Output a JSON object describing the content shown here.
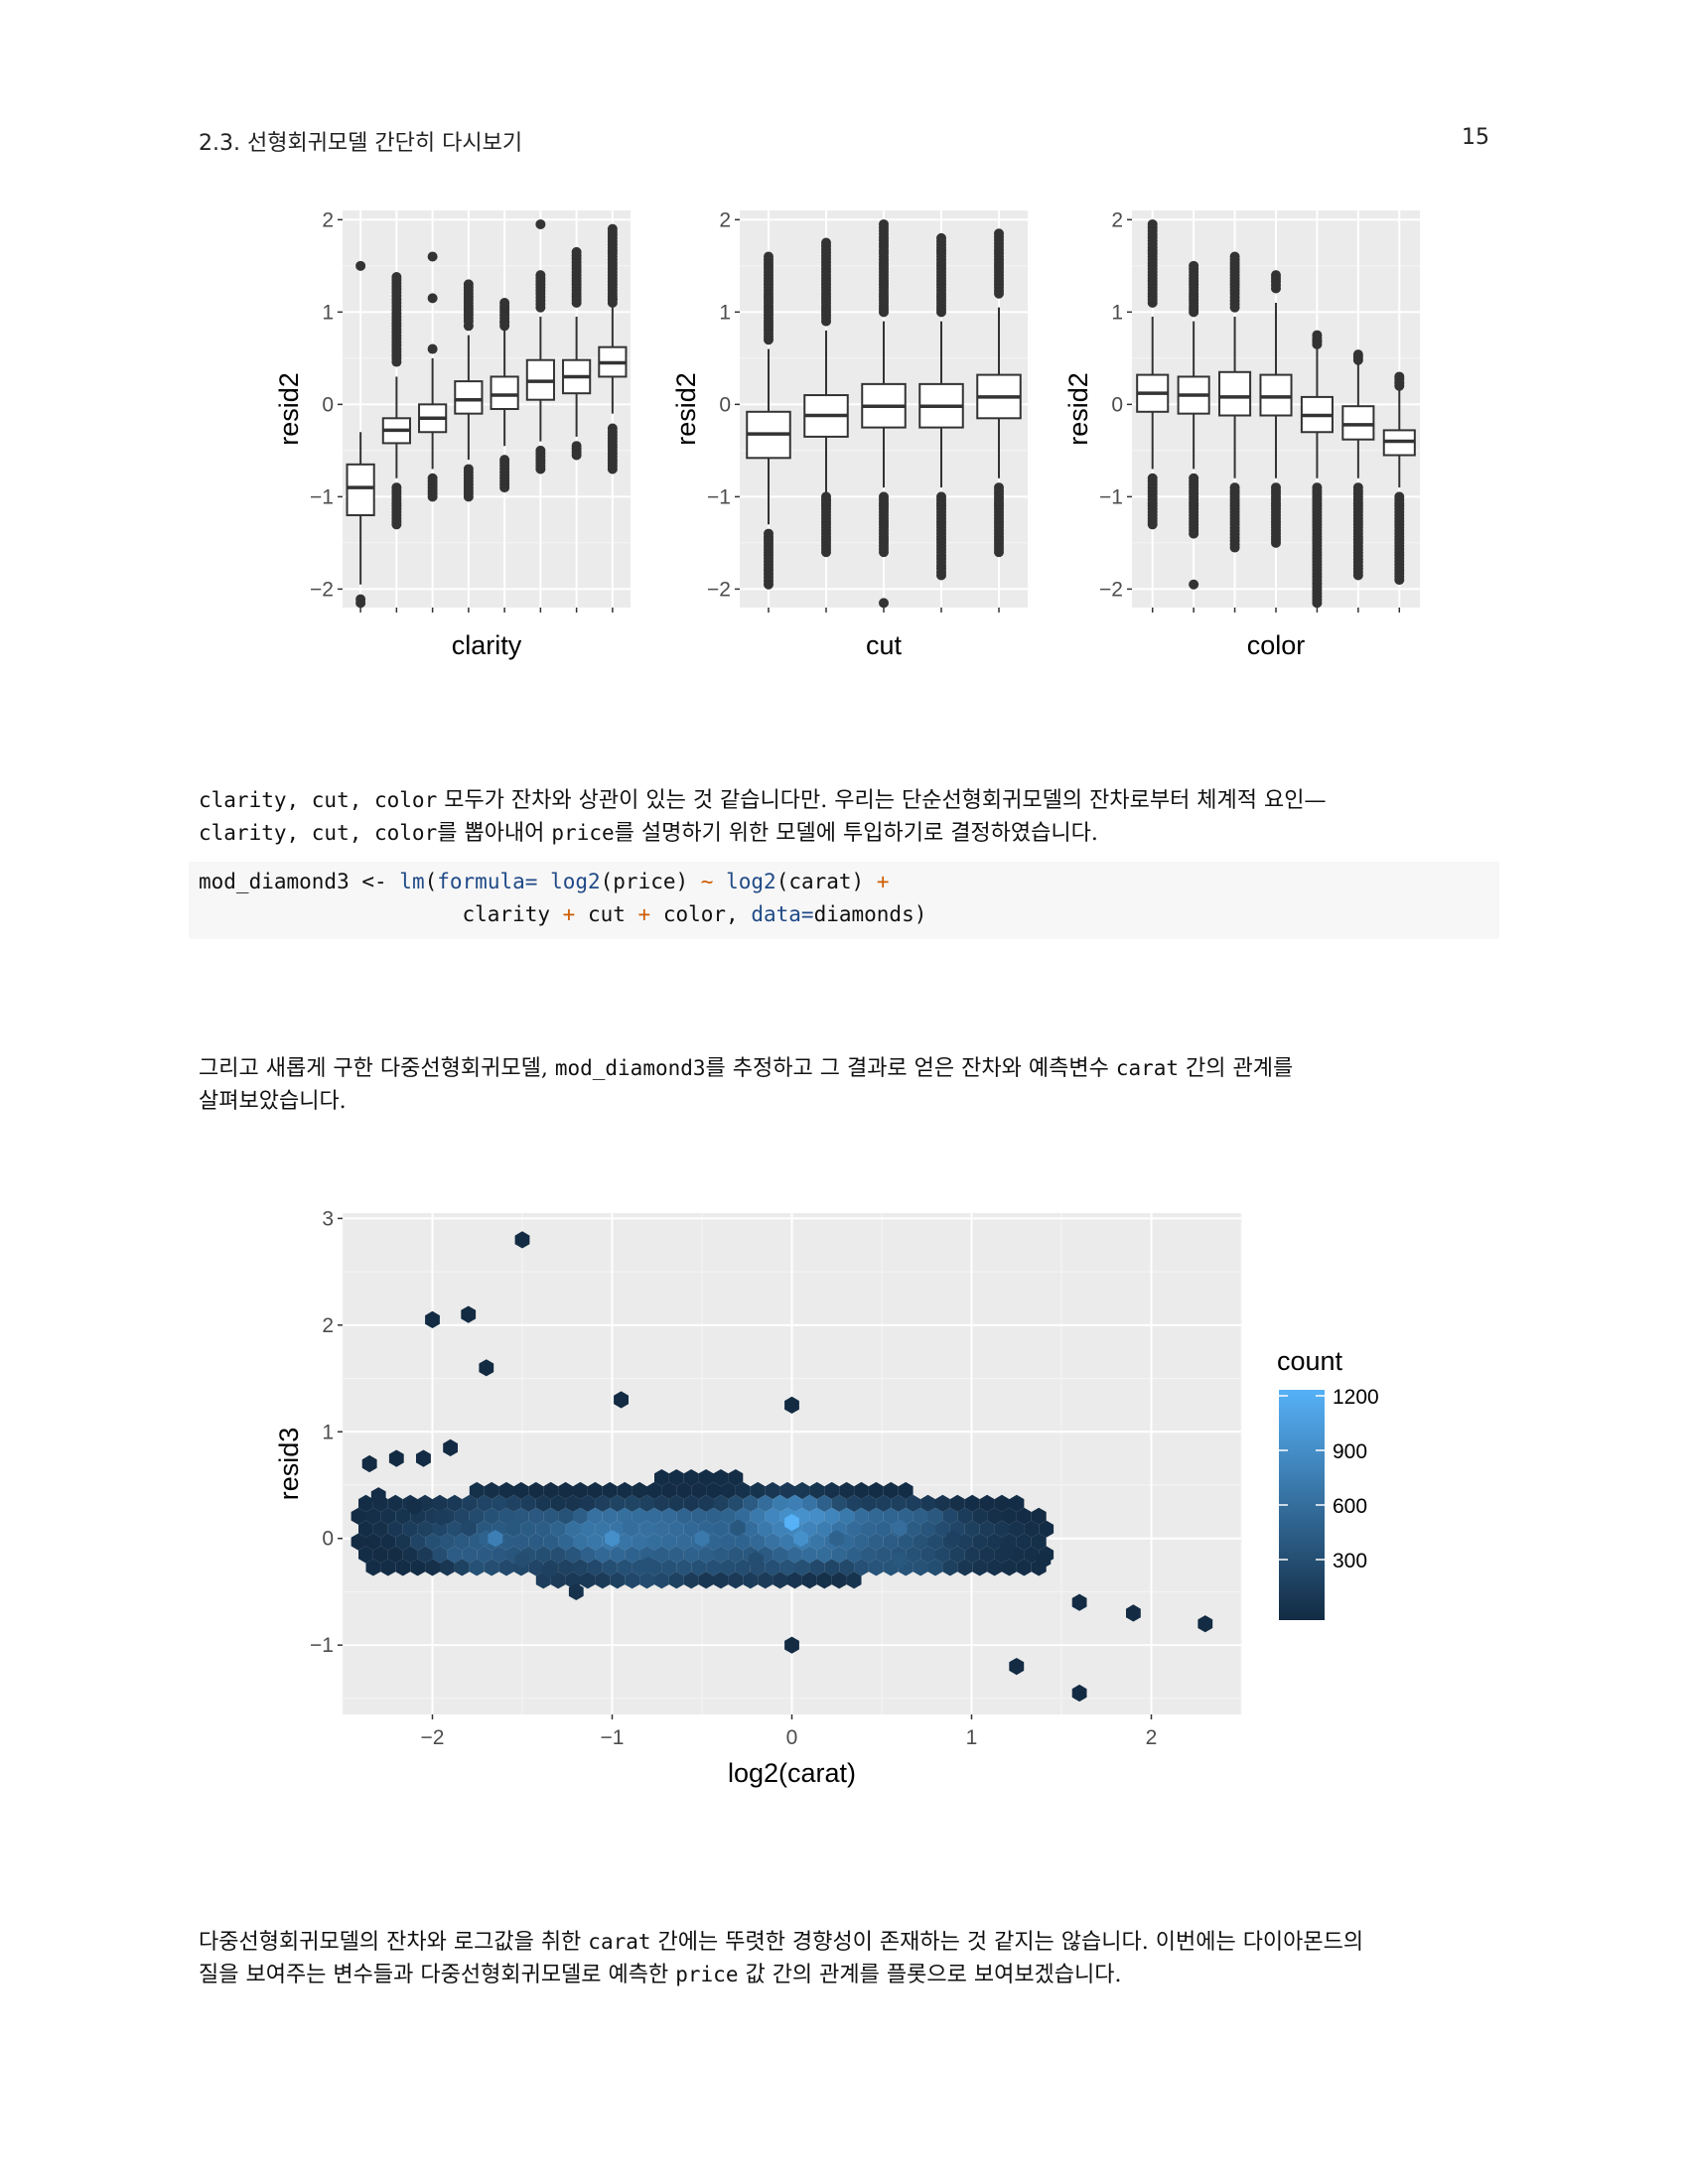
{
  "header": {
    "section": "2.3.  선형회귀모델 간단히 다시보기",
    "page": "15"
  },
  "boxplots": [
    {
      "xlabel": "clarity",
      "ylabel": "resid2",
      "yticks": [
        "2",
        "1",
        "0",
        "−1",
        "−2"
      ],
      "boxes": [
        {
          "q1": -1.2,
          "med": -0.9,
          "q3": -0.65,
          "lo": -1.95,
          "hi": -0.3,
          "out": [
            1.5,
            -2.15
          ]
        },
        {
          "q1": -0.42,
          "med": -0.28,
          "q3": -0.15,
          "lo": -0.8,
          "hi": 0.3,
          "out": [
            1.38,
            1.25,
            1.1,
            0.95,
            0.85,
            0.5,
            -0.9,
            -1.0,
            -1.1,
            -1.2,
            -1.3
          ]
        },
        {
          "q1": -0.3,
          "med": -0.15,
          "q3": 0.0,
          "lo": -0.7,
          "hi": 0.5,
          "out": [
            1.6,
            1.15,
            0.6,
            -0.8,
            -0.9,
            -1.0
          ]
        },
        {
          "q1": -0.1,
          "med": 0.05,
          "q3": 0.25,
          "lo": -0.6,
          "hi": 0.75,
          "out": [
            1.3,
            1.0,
            0.9,
            0.85,
            -0.7,
            -0.8,
            -0.9,
            -1.0
          ]
        },
        {
          "q1": -0.05,
          "med": 0.1,
          "q3": 0.3,
          "lo": -0.45,
          "hi": 0.8,
          "out": [
            1.1,
            1.0,
            0.9,
            0.85,
            -0.6,
            -0.7,
            -0.8,
            -0.9
          ]
        },
        {
          "q1": 0.05,
          "med": 0.25,
          "q3": 0.48,
          "lo": -0.4,
          "hi": 0.95,
          "out": [
            1.95,
            1.4,
            1.2,
            1.05,
            -0.5,
            -0.6,
            -0.7
          ]
        },
        {
          "q1": 0.12,
          "med": 0.3,
          "q3": 0.48,
          "lo": -0.35,
          "hi": 0.95,
          "out": [
            1.65,
            1.5,
            1.3,
            1.1,
            -0.45,
            -0.55
          ]
        },
        {
          "q1": 0.3,
          "med": 0.45,
          "q3": 0.62,
          "lo": -0.1,
          "hi": 1.05,
          "out": [
            1.9,
            1.7,
            1.5,
            1.3,
            1.1,
            -0.3,
            -0.4,
            -0.5,
            -0.6,
            -0.7
          ]
        }
      ]
    },
    {
      "xlabel": "cut",
      "ylabel": "resid2",
      "yticks": [
        "2",
        "1",
        "0",
        "−1",
        "−2"
      ],
      "boxes": [
        {
          "q1": -0.58,
          "med": -0.32,
          "q3": -0.08,
          "lo": -1.3,
          "hi": 0.6,
          "out": [
            1.6,
            1.3,
            1.0,
            0.7,
            -1.4,
            -1.6,
            -1.8,
            -1.95
          ]
        },
        {
          "q1": -0.35,
          "med": -0.12,
          "q3": 0.1,
          "lo": -0.95,
          "hi": 0.8,
          "out": [
            1.75,
            1.4,
            1.1,
            0.9,
            -1.0,
            -1.2,
            -1.4,
            -1.6
          ]
        },
        {
          "q1": -0.25,
          "med": -0.02,
          "q3": 0.22,
          "lo": -0.9,
          "hi": 0.9,
          "out": [
            1.95,
            1.6,
            1.3,
            1.0,
            -1.0,
            -1.3,
            -1.6,
            -2.15
          ]
        },
        {
          "q1": -0.25,
          "med": -0.02,
          "q3": 0.22,
          "lo": -0.9,
          "hi": 0.9,
          "out": [
            1.8,
            1.5,
            1.2,
            1.0,
            -1.0,
            -1.3,
            -1.6,
            -1.85
          ]
        },
        {
          "q1": -0.15,
          "med": 0.08,
          "q3": 0.32,
          "lo": -0.8,
          "hi": 1.05,
          "out": [
            1.85,
            1.6,
            1.4,
            1.2,
            -0.9,
            -1.1,
            -1.4,
            -1.6
          ]
        }
      ]
    },
    {
      "xlabel": "color",
      "ylabel": "resid2",
      "yticks": [
        "2",
        "1",
        "0",
        "−1",
        "−2"
      ],
      "boxes": [
        {
          "q1": -0.08,
          "med": 0.12,
          "q3": 0.32,
          "lo": -0.7,
          "hi": 0.95,
          "out": [
            1.95,
            1.7,
            1.4,
            1.1,
            -0.8,
            -1.0,
            -1.2,
            -1.3
          ]
        },
        {
          "q1": -0.1,
          "med": 0.1,
          "q3": 0.3,
          "lo": -0.7,
          "hi": 0.9,
          "out": [
            1.5,
            1.3,
            1.1,
            1.0,
            -0.8,
            -1.1,
            -1.4,
            -1.95
          ]
        },
        {
          "q1": -0.12,
          "med": 0.08,
          "q3": 0.35,
          "lo": -0.8,
          "hi": 0.95,
          "out": [
            1.6,
            1.4,
            1.2,
            1.05,
            -0.9,
            -1.1,
            -1.3,
            -1.55
          ]
        },
        {
          "q1": -0.12,
          "med": 0.08,
          "q3": 0.32,
          "lo": -0.8,
          "hi": 1.1,
          "out": [
            1.4,
            -0.9,
            -1.1,
            -1.3,
            -1.5
          ]
        },
        {
          "q1": -0.3,
          "med": -0.12,
          "q3": 0.08,
          "lo": -0.8,
          "hi": 0.6,
          "out": [
            0.75,
            0.65,
            -0.9,
            -1.2,
            -1.5,
            -1.8,
            -2.15
          ]
        },
        {
          "q1": -0.38,
          "med": -0.22,
          "q3": -0.02,
          "lo": -0.8,
          "hi": 0.45,
          "out": [
            0.48,
            -0.9,
            -1.2,
            -1.5,
            -1.85
          ]
        },
        {
          "q1": -0.55,
          "med": -0.4,
          "q3": -0.28,
          "lo": -0.9,
          "hi": 0.15,
          "out": [
            0.3,
            0.2,
            -1.0,
            -1.3,
            -1.6,
            -1.9
          ]
        }
      ]
    }
  ],
  "paragraph1": {
    "line1": [
      {
        "t": "clarity, cut, color",
        "code": true
      },
      {
        "t": " 모두가 잔차와 상관이 있는 것 같습니다만.  우리는 단순선형회귀모델의 잔차로부터 체계적 요인—",
        "code": false
      }
    ],
    "line2": [
      {
        "t": "clarity, cut, color",
        "code": true
      },
      {
        "t": "를 뽑아내어 ",
        "code": false
      },
      {
        "t": "price",
        "code": true
      },
      {
        "t": "를 설명하기 위한 모델에 투입하기로 결정하였습니다.",
        "code": false
      }
    ]
  },
  "code": {
    "line1": [
      {
        "t": "mod_diamond3 <- ",
        "c": ""
      },
      {
        "t": "lm",
        "c": "kw"
      },
      {
        "t": "(",
        "c": ""
      },
      {
        "t": "formula=",
        "c": "kw"
      },
      {
        "t": " ",
        "c": ""
      },
      {
        "t": "log2",
        "c": "kw"
      },
      {
        "t": "(price) ",
        "c": ""
      },
      {
        "t": "~",
        "c": "op"
      },
      {
        "t": " ",
        "c": ""
      },
      {
        "t": "log2",
        "c": "kw"
      },
      {
        "t": "(carat) ",
        "c": ""
      },
      {
        "t": "+",
        "c": "op"
      }
    ],
    "line2": [
      {
        "t": "                     clarity ",
        "c": ""
      },
      {
        "t": "+",
        "c": "op"
      },
      {
        "t": " cut ",
        "c": ""
      },
      {
        "t": "+",
        "c": "op"
      },
      {
        "t": " color, ",
        "c": ""
      },
      {
        "t": "data=",
        "c": "kw"
      },
      {
        "t": "diamonds)",
        "c": ""
      }
    ]
  },
  "paragraph2": {
    "line1": [
      {
        "t": "그리고 새롭게 구한 다중선형회귀모델, ",
        "code": false
      },
      {
        "t": "mod_diamond3",
        "code": true
      },
      {
        "t": "를 추정하고 그 결과로 얻은 잔차와 예측변수 ",
        "code": false
      },
      {
        "t": "carat",
        "code": true
      },
      {
        "t": " 간의 관계를",
        "code": false
      }
    ],
    "line2": [
      {
        "t": "살펴보았습니다.",
        "code": false
      }
    ]
  },
  "hexplot": {
    "xlabel": "log2(carat)",
    "ylabel": "resid3",
    "xticks": [
      "−2",
      "−1",
      "0",
      "1",
      "2"
    ],
    "yticks": [
      "3",
      "2",
      "1",
      "0",
      "−1"
    ],
    "legend_title": "count",
    "legend_ticks": [
      "1200",
      "900",
      "600",
      "300"
    ],
    "color_low": "#132b43",
    "color_high": "#56b1f7"
  },
  "chart_data": [
    {
      "type": "box",
      "xlabel": "clarity",
      "ylabel": "resid2",
      "ylim": [
        -2.2,
        2.1
      ],
      "n_categories": 8
    },
    {
      "type": "box",
      "xlabel": "cut",
      "ylabel": "resid2",
      "ylim": [
        -2.2,
        2.1
      ],
      "n_categories": 5
    },
    {
      "type": "box",
      "xlabel": "color",
      "ylabel": "resid2",
      "ylim": [
        -2.2,
        2.1
      ],
      "n_categories": 7
    },
    {
      "type": "hexbin",
      "xlabel": "log2(carat)",
      "ylabel": "resid3",
      "xlim": [
        -2.5,
        2.5
      ],
      "ylim": [
        -1.65,
        3.05
      ],
      "legend": "count",
      "count_range": [
        1,
        1200
      ],
      "bins": [
        {
          "x": -2.35,
          "y": 0.7,
          "c": 3
        },
        {
          "x": -2.2,
          "y": 0.75,
          "c": 2
        },
        {
          "x": -2.05,
          "y": 0.75,
          "c": 4
        },
        {
          "x": -1.9,
          "y": 0.85,
          "c": 2
        },
        {
          "x": -2.3,
          "y": 0.4,
          "c": 10
        },
        {
          "x": -2.1,
          "y": 0.3,
          "c": 40
        },
        {
          "x": -1.95,
          "y": 0.2,
          "c": 150
        },
        {
          "x": -1.8,
          "y": 0.1,
          "c": 250
        },
        {
          "x": -1.7,
          "y": 0.0,
          "c": 500
        },
        {
          "x": -1.65,
          "y": 0.0,
          "c": 750
        },
        {
          "x": -1.55,
          "y": 0.1,
          "c": 400
        },
        {
          "x": -1.5,
          "y": -0.2,
          "c": 300
        },
        {
          "x": -1.35,
          "y": -0.3,
          "c": 200
        },
        {
          "x": -1.2,
          "y": -0.5,
          "c": 60
        },
        {
          "x": -1.0,
          "y": 0.0,
          "c": 900
        },
        {
          "x": -0.9,
          "y": 0.1,
          "c": 600
        },
        {
          "x": -0.8,
          "y": -0.25,
          "c": 350
        },
        {
          "x": -0.5,
          "y": 0.0,
          "c": 700
        },
        {
          "x": -0.3,
          "y": 0.1,
          "c": 400
        },
        {
          "x": -0.2,
          "y": -0.2,
          "c": 300
        },
        {
          "x": 0.0,
          "y": 0.15,
          "c": 1200
        },
        {
          "x": 0.05,
          "y": 0.0,
          "c": 900
        },
        {
          "x": 0.25,
          "y": 0.0,
          "c": 500
        },
        {
          "x": 0.6,
          "y": 0.1,
          "c": 600
        },
        {
          "x": 0.6,
          "y": -0.2,
          "c": 400
        },
        {
          "x": 0.9,
          "y": 0.0,
          "c": 200
        },
        {
          "x": 1.2,
          "y": -0.1,
          "c": 60
        },
        {
          "x": 1.4,
          "y": -0.2,
          "c": 20
        },
        {
          "x": 1.6,
          "y": -0.6,
          "c": 5
        },
        {
          "x": 1.9,
          "y": -0.7,
          "c": 2
        },
        {
          "x": 2.3,
          "y": -0.8,
          "c": 1
        },
        {
          "x": -1.5,
          "y": 2.8,
          "c": 1
        },
        {
          "x": -2.0,
          "y": 2.05,
          "c": 1
        },
        {
          "x": -1.8,
          "y": 2.1,
          "c": 1
        },
        {
          "x": -1.7,
          "y": 1.6,
          "c": 1
        },
        {
          "x": -0.95,
          "y": 1.3,
          "c": 1
        },
        {
          "x": 0.0,
          "y": 1.25,
          "c": 1
        },
        {
          "x": 1.6,
          "y": -1.45,
          "c": 1
        },
        {
          "x": 1.25,
          "y": -1.2,
          "c": 1
        },
        {
          "x": 0.0,
          "y": -1.0,
          "c": 1
        }
      ]
    }
  ],
  "paragraph3": {
    "line1": [
      {
        "t": "다중선형회귀모델의 잔차와 로그값을 취한 ",
        "code": false
      },
      {
        "t": "carat",
        "code": true
      },
      {
        "t": " 간에는 뚜렷한 경향성이 존재하는 것 같지는 않습니다. 이번에는 다이아몬드의",
        "code": false
      }
    ],
    "line2": [
      {
        "t": "질을 보여주는 변수들과 다중선형회귀모델로 예측한 ",
        "code": false
      },
      {
        "t": "price",
        "code": true
      },
      {
        "t": " 값 간의 관계를 플롯으로 보여보겠습니다.",
        "code": false
      }
    ]
  }
}
